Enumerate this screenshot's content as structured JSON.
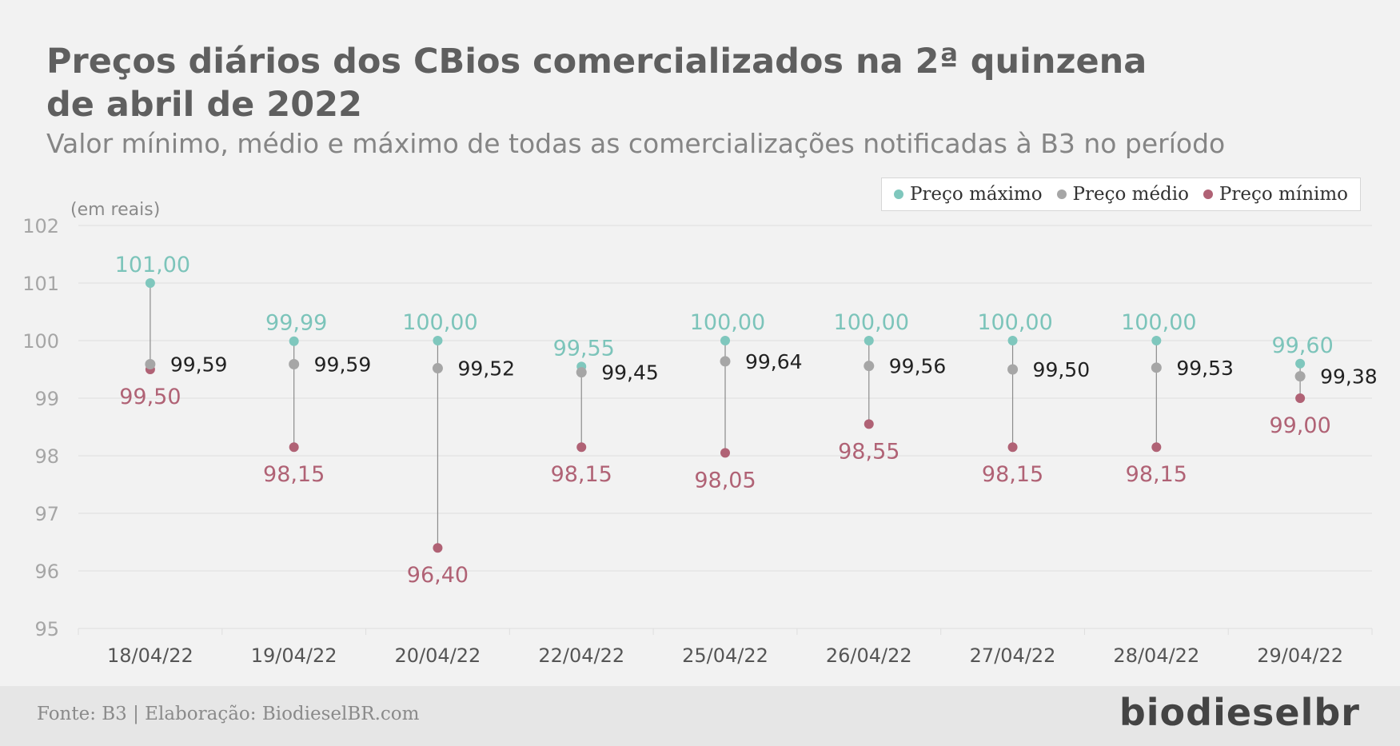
{
  "header": {
    "title": "Preços diários dos CBios comercializados na 2ª quinzena de abril de 2022",
    "subtitle": "Valor mínimo, médio e máximo de todas as comercializações notificadas à B3 no período"
  },
  "legend": {
    "max_label": "Preço máximo",
    "avg_label": "Preço médio",
    "min_label": "Preço mínimo"
  },
  "colors": {
    "max": "#7fc7bd",
    "avg": "#a6a6a6",
    "min": "#b06275",
    "max_text": "#7cc4ba",
    "avg_text": "#222222",
    "min_text": "#b06275",
    "grid": "#dedede",
    "axis_text": "#a6a6a6",
    "cat_text": "#555555"
  },
  "footer": {
    "source": "Fonte: B3 | Elaboração: BiodieselBR.com",
    "logo": "biodieselbr"
  },
  "chart_data": {
    "type": "scatter",
    "categories": [
      "18/04/22",
      "19/04/22",
      "20/04/22",
      "22/04/22",
      "25/04/22",
      "26/04/22",
      "27/04/22",
      "28/04/22",
      "29/04/22"
    ],
    "series": [
      {
        "name": "Preço máximo",
        "values": [
          101.0,
          99.99,
          100.0,
          99.55,
          100.0,
          100.0,
          100.0,
          100.0,
          99.6
        ],
        "labels": [
          "101,00",
          "99,99",
          "100,00",
          "99,55",
          "100,00",
          "100,00",
          "100,00",
          "100,00",
          "99,60"
        ]
      },
      {
        "name": "Preço médio",
        "values": [
          99.59,
          99.59,
          99.52,
          99.45,
          99.64,
          99.56,
          99.5,
          99.53,
          99.38
        ],
        "labels": [
          "99,59",
          "99,59",
          "99,52",
          "99,45",
          "99,64",
          "99,56",
          "99,50",
          "99,53",
          "99,38"
        ]
      },
      {
        "name": "Preço mínimo",
        "values": [
          99.5,
          98.15,
          96.4,
          98.15,
          98.05,
          98.55,
          98.15,
          98.15,
          99.0
        ],
        "labels": [
          "99,50",
          "98,15",
          "96,40",
          "98,15",
          "98,05",
          "98,55",
          "98,15",
          "98,15",
          "99,00"
        ]
      }
    ],
    "ylabel": "(em reais)",
    "ylim": [
      95,
      102
    ],
    "yticks": [
      95,
      96,
      97,
      98,
      99,
      100,
      101,
      102
    ],
    "grid": true,
    "legend_position": "top-right"
  }
}
